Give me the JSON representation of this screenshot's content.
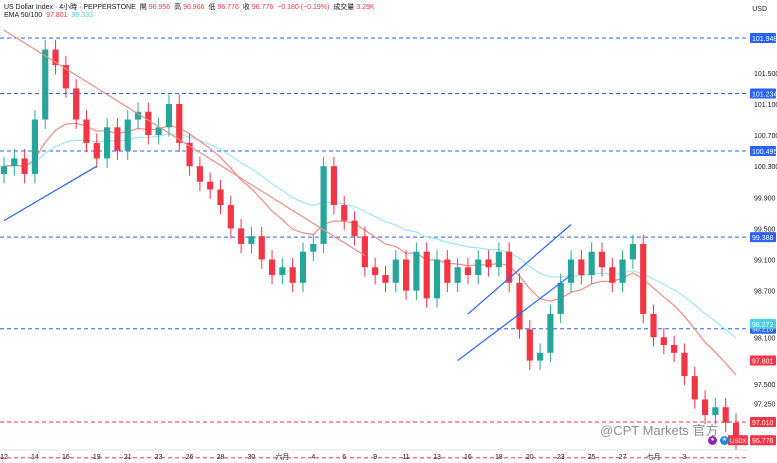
{
  "header": {
    "line1_title": "US Dollar Index · 4小時 · PEPPERSTONE",
    "open_label": "開",
    "open_val": "96.956",
    "high_label": "高",
    "high_val": "96.966",
    "low_label": "低",
    "low_val": "96.776",
    "close_label": "收",
    "close_val": "96.776",
    "change_val": "−0.180 (−0.19%)",
    "vol_label": "成交量",
    "vol_val": "3.29K",
    "ema_label": "EMA 50/100",
    "ema50_val": "97.801",
    "ema100_val": "98.333"
  },
  "currency_label": "USD",
  "watermark": "@CPT Markets 官方",
  "colors": {
    "up": "#26a69a",
    "down": "#f23645",
    "ema50": "#f28b82",
    "ema100": "#9ee7f0",
    "level": "#2962ff",
    "trend_down": "#f28b82",
    "trend_up": "#2962ff",
    "axis_text": "#131722",
    "price_tag_bg": "#f23645"
  },
  "chart_data": {
    "type": "candlestick",
    "y_axis": {
      "ticks": [
        "101.500",
        "101.100",
        "100.700",
        "100.300",
        "99.900",
        "99.500",
        "99.100",
        "98.700",
        "98.100",
        "97.500",
        "97.250"
      ],
      "tick_values": [
        101.5,
        101.1,
        100.7,
        100.3,
        99.9,
        99.5,
        99.1,
        98.7,
        98.1,
        97.5,
        97.25
      ],
      "ylim": [
        96.65,
        102.18
      ]
    },
    "x_axis": {
      "labels": [
        "12",
        "14",
        "16",
        "19",
        "21",
        "23",
        "26",
        "28",
        "30",
        "六月",
        "4",
        "6",
        "9",
        "11",
        "13",
        "16",
        "18",
        "20",
        "23",
        "25",
        "27",
        "七月",
        "3"
      ],
      "positions": [
        0,
        3,
        6,
        9,
        12,
        15,
        18,
        21,
        24,
        27,
        30,
        33,
        36,
        39,
        42,
        45,
        48,
        51,
        54,
        57,
        60,
        63,
        66
      ]
    },
    "horizontal_levels": [
      {
        "value": 101.948,
        "label": "101.948",
        "style": "dashed-blue"
      },
      {
        "value": 101.234,
        "label": "101.234",
        "style": "dashed-blue"
      },
      {
        "value": 100.495,
        "label": "100.495",
        "style": "dashed-blue"
      },
      {
        "value": 99.388,
        "label": "99.388",
        "style": "dashed-blue"
      },
      {
        "value": 98.21,
        "label": "98.210",
        "style": "dashed-blue"
      },
      {
        "value": 97.01,
        "label": "97.010",
        "style": "dashed-red"
      },
      {
        "value": 96.55,
        "label": "",
        "style": "dashed-red"
      }
    ],
    "price_tags": [
      {
        "label": "98.272",
        "value": 98.272,
        "color": "#4dd0e1"
      },
      {
        "label": "97.801",
        "value": 97.801,
        "color": "#f23645"
      },
      {
        "label": "96.776",
        "value": 96.776,
        "color": "#f23645",
        "prefix": "USDX"
      }
    ],
    "candles_close": [
      100.3,
      100.4,
      100.2,
      100.9,
      101.8,
      101.6,
      101.3,
      100.9,
      100.6,
      100.4,
      100.8,
      100.5,
      100.9,
      101.0,
      100.7,
      100.8,
      101.1,
      100.6,
      100.3,
      100.1,
      100.0,
      99.8,
      99.5,
      99.3,
      99.4,
      99.1,
      98.9,
      99.0,
      98.8,
      99.2,
      99.3,
      100.3,
      99.8,
      99.6,
      99.4,
      99.0,
      98.9,
      98.8,
      99.1,
      98.7,
      99.2,
      98.6,
      99.1,
      98.8,
      99.0,
      98.9,
      99.1,
      99.0,
      99.2,
      98.8,
      98.2,
      97.8,
      97.9,
      98.4,
      98.8,
      99.1,
      98.9,
      99.2,
      99.0,
      98.8,
      99.1,
      99.3,
      98.4,
      98.1,
      98.0,
      97.9,
      97.6,
      97.3,
      97.1,
      97.2,
      97.0,
      96.78
    ],
    "series": [
      {
        "name": "EMA 50"
      },
      {
        "name": "EMA 100"
      }
    ],
    "trendlines": [
      {
        "type": "down",
        "from": [
          0,
          102.05
        ],
        "to": [
          35,
          99.15
        ]
      },
      {
        "type": "up",
        "from": [
          0,
          99.6
        ],
        "to": [
          9,
          100.3
        ]
      },
      {
        "type": "up",
        "from": [
          44,
          97.8
        ],
        "to": [
          55,
          98.9
        ]
      },
      {
        "type": "up",
        "from": [
          45,
          98.4
        ],
        "to": [
          55,
          99.55
        ]
      }
    ]
  }
}
